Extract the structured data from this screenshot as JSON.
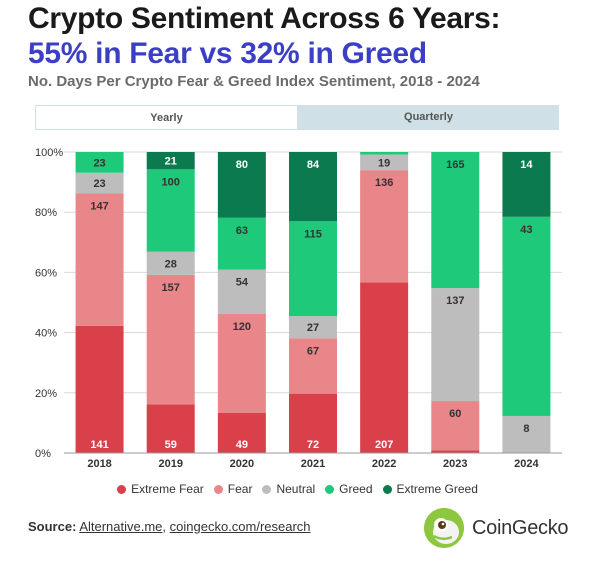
{
  "header": {
    "title_line1": "Crypto Sentiment Across 6 Years:",
    "title_line2": "55% in Fear vs 32% in Greed",
    "subtitle": "No. Days Per Crypto Fear & Greed Index Sentiment, 2018 - 2024"
  },
  "tabs": [
    {
      "label": "Yearly",
      "active": true
    },
    {
      "label": "Quarterly",
      "active": false
    }
  ],
  "chart_data": {
    "type": "bar",
    "stacked": true,
    "normalized": true,
    "categories": [
      "2018",
      "2019",
      "2020",
      "2021",
      "2022",
      "2023",
      "2024"
    ],
    "series": [
      {
        "name": "Extreme Fear",
        "color": "#d9404a",
        "values": [
          141,
          59,
          49,
          72,
          207,
          3,
          0
        ],
        "labels": [
          "141",
          "59",
          "49",
          "72",
          "207",
          "",
          ""
        ]
      },
      {
        "name": "Fear",
        "color": "#e8868a",
        "values": [
          147,
          157,
          120,
          67,
          136,
          60,
          0
        ],
        "labels": [
          "147",
          "157",
          "120",
          "67",
          "136",
          "60",
          ""
        ]
      },
      {
        "name": "Neutral",
        "color": "#bdbdbd",
        "values": [
          23,
          28,
          54,
          27,
          19,
          137,
          8
        ],
        "labels": [
          "23",
          "28",
          "54",
          "27",
          "19",
          "137",
          "8"
        ]
      },
      {
        "name": "Greed",
        "color": "#1ec97a",
        "values": [
          23,
          100,
          63,
          115,
          3,
          165,
          43
        ],
        "labels": [
          "23",
          "100",
          "63",
          "115",
          "",
          "165",
          "43"
        ]
      },
      {
        "name": "Extreme Greed",
        "color": "#0b7a4f",
        "values": [
          0,
          21,
          80,
          84,
          0,
          0,
          14
        ],
        "labels": [
          "",
          "21",
          "80",
          "84",
          "",
          "",
          "14"
        ]
      }
    ],
    "y_ticks": [
      "0%",
      "20%",
      "40%",
      "60%",
      "80%",
      "100%"
    ],
    "ylim": [
      0,
      100
    ],
    "legend_position": "bottom"
  },
  "footer": {
    "source_label": "Source:",
    "source_link1": "Alternative.me",
    "source_sep": ", ",
    "source_link2": "coingecko.com/research",
    "brand": "CoinGecko"
  }
}
